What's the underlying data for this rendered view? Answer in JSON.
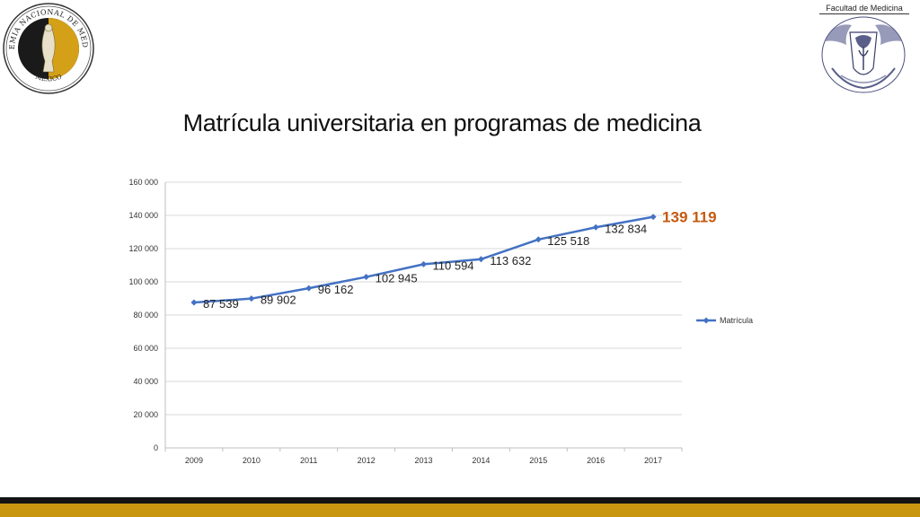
{
  "header": {
    "left_logo": {
      "icon": "academia-nacional-de-medicina-seal-icon",
      "text_top": "ACADEMIA NACIONAL DE MEDICINA",
      "text_bottom": "MÉXICO"
    },
    "right_logo": {
      "icon": "unam-facultad-de-medicina-emblem-icon",
      "label": "Facultad de Medicina"
    }
  },
  "colors": {
    "series_line": "#4472c4",
    "last_label": "#c55a11",
    "footer_black": "#141414",
    "footer_gold": "#c9970f"
  },
  "chart_data": {
    "type": "line",
    "title": "Matrícula universitaria en programas de medicina",
    "categories": [
      "2009",
      "2010",
      "2011",
      "2012",
      "2013",
      "2014",
      "2015",
      "2016",
      "2017"
    ],
    "series": [
      {
        "name": "Matrícula",
        "values": [
          87539,
          89902,
          96162,
          102945,
          110594,
          113632,
          125518,
          132834,
          139119
        ],
        "labels": [
          "87 539",
          "89 902",
          "96 162",
          "102 945",
          "110 594",
          "113 632",
          "125 518",
          "132 834",
          "139 119"
        ]
      }
    ],
    "ylim": [
      0,
      160000
    ],
    "yticks": [
      0,
      20000,
      40000,
      60000,
      80000,
      100000,
      120000,
      140000,
      160000
    ],
    "ytick_labels": [
      "0",
      "20 000",
      "40 000",
      "60 000",
      "80 000",
      "100 000",
      "120 000",
      "140 000",
      "160 000"
    ],
    "xlabel": "",
    "ylabel": "",
    "grid": true,
    "legend": "right"
  }
}
